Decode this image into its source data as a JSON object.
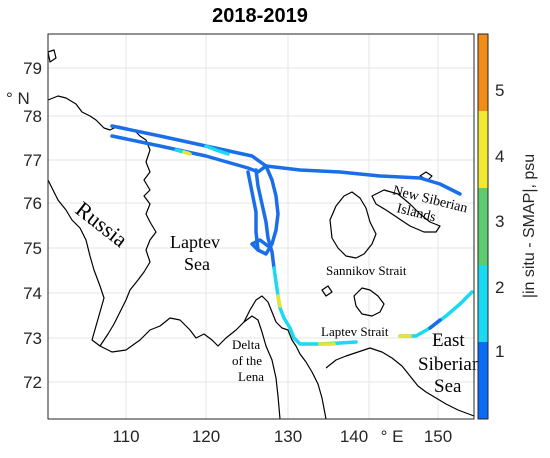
{
  "title": "2018-2019",
  "axes": {
    "lat_unit_label": "° N",
    "lon_unit_label": "° E",
    "lat_ticks": [
      "79",
      "78",
      "77",
      "76",
      "75",
      "74",
      "73",
      "72"
    ],
    "lon_ticks": [
      "110",
      "120",
      "130",
      "140",
      "150"
    ]
  },
  "colorbar": {
    "label": "|in situ - SMAP|, psu",
    "ticks": [
      "1",
      "2",
      "3",
      "4",
      "5"
    ],
    "colors": [
      "#0a6bf5",
      "#1ad9f0",
      "#5ccc6e",
      "#f0e832",
      "#f08c1a"
    ]
  },
  "places": {
    "russia": "Russia",
    "laptev_sea_1": "Laptev",
    "laptev_sea_2": "Sea",
    "new_siberian_1": "New Siberian",
    "new_siberian_2": "Islands",
    "sannikov": "Sannikov Strait",
    "laptev_strait": "Laptev Strait",
    "delta_1": "Delta",
    "delta_2": "of the",
    "delta_3": "Lena",
    "east_siberian_1": "East",
    "east_siberian_2": "Siberian",
    "east_siberian_3": "Sea"
  }
}
